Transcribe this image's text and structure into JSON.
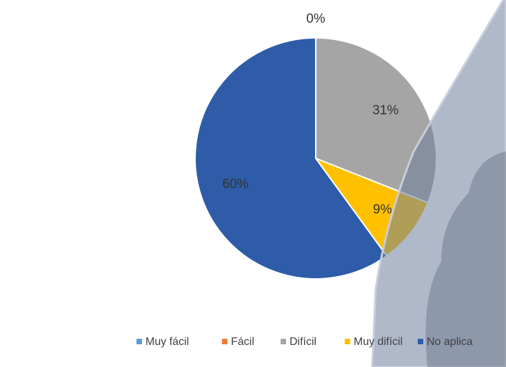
{
  "chart_data": {
    "type": "pie",
    "categories": [
      "Muy fácil",
      "Fácil",
      "Difícil",
      "Muy difícil",
      "No aplica"
    ],
    "values": [
      0,
      0,
      31,
      9,
      60
    ],
    "value_labels": [
      "0%",
      null,
      "31%",
      "9%",
      "60%"
    ],
    "colors": [
      "#5b9bd5",
      "#ed7d31",
      "#a5a5a5",
      "#ffc000",
      "#2e5ca8"
    ],
    "legend": "bottom"
  }
}
